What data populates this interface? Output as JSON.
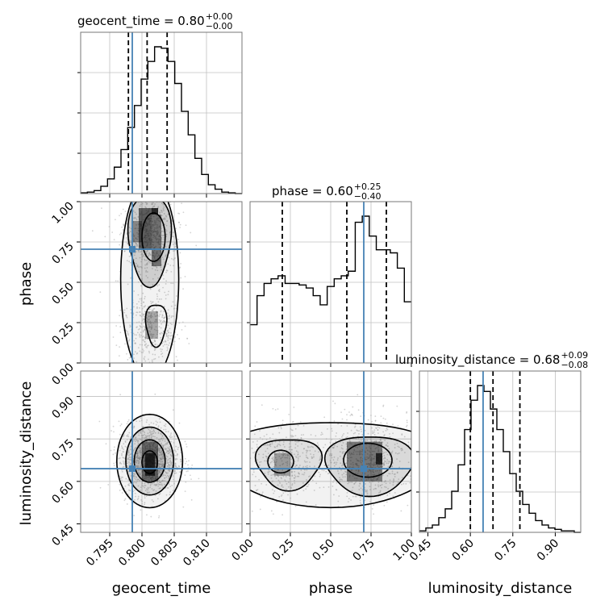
{
  "chart_data": {
    "type": "corner",
    "colors": {
      "hist": "#000000",
      "truth": "#4682b4",
      "grid": "#c0c0c0",
      "scatter": "#b0b0b0"
    },
    "parameters": [
      {
        "name": "geocent_time",
        "label": "geocent_time",
        "range": [
          0.7905,
          0.8155
        ],
        "ticks": [
          0.795,
          0.8,
          0.805,
          0.81
        ],
        "tick_labels": [
          "0.795",
          "0.800",
          "0.805",
          "0.810"
        ],
        "truth": 0.7985,
        "quantiles": [
          0.7979,
          0.8008,
          0.8039
        ],
        "title_main": "geocent_time = 0.80",
        "title_sup": "+0.00",
        "title_sub": "−0.00",
        "hist_values": [
          0.005,
          0.01,
          0.02,
          0.05,
          0.1,
          0.18,
          0.3,
          0.45,
          0.6,
          0.78,
          0.9,
          1.0,
          0.99,
          0.9,
          0.75,
          0.56,
          0.4,
          0.24,
          0.13,
          0.06,
          0.03,
          0.01,
          0.005,
          0.0
        ]
      },
      {
        "name": "phase",
        "label": "phase",
        "range": [
          0.0,
          1.0
        ],
        "ticks": [
          0.0,
          0.25,
          0.5,
          0.75,
          1.0
        ],
        "tick_labels": [
          "0.00",
          "0.25",
          "0.50",
          "0.75",
          "1.00"
        ],
        "truth": 0.705,
        "quantiles": [
          0.2,
          0.6,
          0.845
        ],
        "title_main": "phase = 0.60",
        "title_sup": "+0.25",
        "title_sub": "−0.40",
        "hist_values": [
          0.25,
          0.44,
          0.52,
          0.55,
          0.57,
          0.52,
          0.52,
          0.51,
          0.49,
          0.44,
          0.38,
          0.5,
          0.55,
          0.57,
          0.6,
          0.92,
          0.96,
          0.83,
          0.74,
          0.74,
          0.72,
          0.62,
          0.4
        ]
      },
      {
        "name": "luminosity_distance",
        "label": "luminosity_distance",
        "range": [
          0.42,
          0.99
        ],
        "ticks": [
          0.45,
          0.6,
          0.75,
          0.9
        ],
        "tick_labels": [
          "0.45",
          "0.60",
          "0.75",
          "0.90"
        ],
        "truth": 0.645,
        "quantiles": [
          0.6,
          0.68,
          0.775
        ],
        "title_main": "luminosity_distance = 0.68",
        "title_sup": "+0.09",
        "title_sub": "−0.08",
        "hist_values": [
          0.01,
          0.03,
          0.05,
          0.1,
          0.16,
          0.28,
          0.46,
          0.7,
          0.9,
          1.0,
          0.96,
          0.84,
          0.7,
          0.55,
          0.4,
          0.28,
          0.19,
          0.13,
          0.08,
          0.05,
          0.03,
          0.02,
          0.01,
          0.01,
          0.0
        ]
      }
    ]
  }
}
